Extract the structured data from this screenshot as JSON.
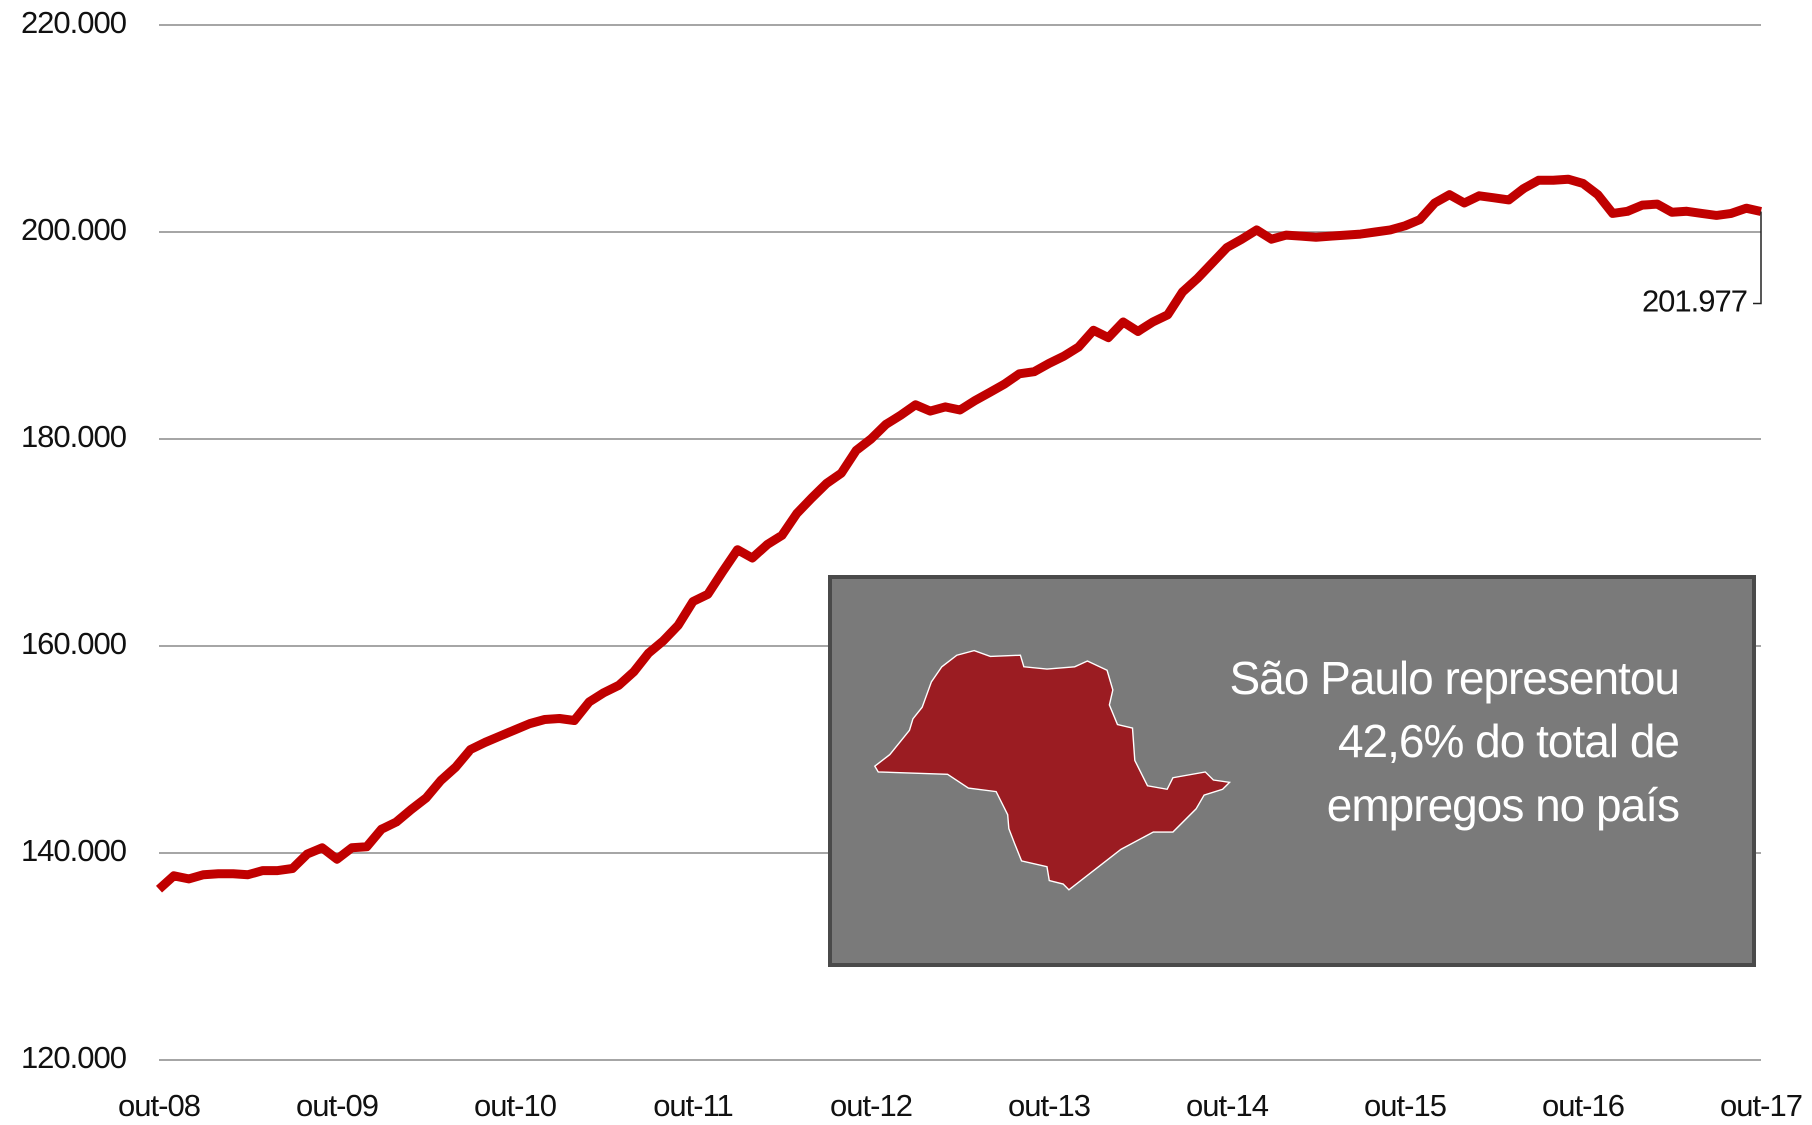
{
  "chart_data": {
    "type": "line",
    "categories": [
      "out-08",
      null,
      null,
      null,
      null,
      null,
      null,
      null,
      null,
      null,
      null,
      null,
      "out-09",
      null,
      null,
      null,
      null,
      null,
      null,
      null,
      null,
      null,
      null,
      null,
      "out-10",
      null,
      null,
      null,
      null,
      null,
      null,
      null,
      null,
      null,
      null,
      null,
      "out-11",
      null,
      null,
      null,
      null,
      null,
      null,
      null,
      null,
      null,
      null,
      null,
      "out-12",
      null,
      null,
      null,
      null,
      null,
      null,
      null,
      null,
      null,
      null,
      null,
      "out-13",
      null,
      null,
      null,
      null,
      null,
      null,
      null,
      null,
      null,
      null,
      null,
      "out-14",
      null,
      null,
      null,
      null,
      null,
      null,
      null,
      null,
      null,
      null,
      null,
      "out-15",
      null,
      null,
      null,
      null,
      null,
      null,
      null,
      null,
      null,
      null,
      null,
      "out-16",
      null,
      null,
      null,
      null,
      null,
      null,
      null,
      null,
      null,
      null,
      null,
      "out-17"
    ],
    "series": [
      {
        "color": "#c00000",
        "values": [
          136500,
          137800,
          137500,
          137900,
          138000,
          138000,
          137900,
          138300,
          138300,
          138500,
          139900,
          140500,
          139400,
          140500,
          140600,
          142300,
          143000,
          144200,
          145300,
          147000,
          148300,
          150000,
          150700,
          151300,
          151900,
          152500,
          152900,
          153000,
          152800,
          154600,
          155500,
          156200,
          157500,
          159300,
          160500,
          162000,
          164300,
          165000,
          167200,
          169300,
          168500,
          169800,
          170700,
          172800,
          174300,
          175700,
          176700,
          178900,
          180000,
          181400,
          182300,
          183300,
          182700,
          183100,
          182800,
          183700,
          184500,
          185300,
          186300,
          186500,
          187300,
          188000,
          188900,
          190500,
          189800,
          191300,
          190400,
          191300,
          192000,
          194200,
          195500,
          197000,
          198500,
          199300,
          200200,
          199300,
          199700,
          199600,
          199500,
          199600,
          199700,
          199800,
          200000,
          200200,
          200600,
          201200,
          202800,
          203600,
          202800,
          203500,
          203300,
          203100,
          204200,
          205000,
          205000,
          205100,
          204700,
          203600,
          201800,
          202000,
          202600,
          202700,
          201900,
          202000,
          201800,
          201600,
          201800,
          202300,
          201977
        ],
        "value_labels": [
          null,
          null,
          null,
          null,
          null,
          null,
          null,
          null,
          null,
          null,
          null,
          null,
          null,
          null,
          null,
          null,
          null,
          null,
          null,
          null,
          null,
          null,
          null,
          null,
          null,
          null,
          null,
          null,
          null,
          null,
          null,
          null,
          null,
          null,
          null,
          null,
          null,
          null,
          null,
          null,
          null,
          null,
          null,
          null,
          null,
          null,
          null,
          null,
          null,
          null,
          null,
          null,
          null,
          null,
          null,
          null,
          null,
          null,
          null,
          null,
          null,
          null,
          null,
          null,
          null,
          null,
          null,
          null,
          null,
          null,
          null,
          null,
          null,
          null,
          null,
          null,
          null,
          null,
          null,
          null,
          null,
          null,
          null,
          null,
          null,
          null,
          null,
          null,
          null,
          null,
          null,
          null,
          null,
          null,
          null,
          null,
          null,
          null,
          null,
          null,
          null,
          null,
          null,
          null,
          null,
          null,
          null,
          null,
          "201.977"
        ]
      }
    ],
    "ylim": [
      120000,
      220000
    ],
    "yticks": [
      {
        "value": 120000,
        "label": "120.000"
      },
      {
        "value": 140000,
        "label": "140.000"
      },
      {
        "value": 160000,
        "label": "160.000"
      },
      {
        "value": 180000,
        "label": "180.000"
      },
      {
        "value": 200000,
        "label": "200.000"
      },
      {
        "value": 220000,
        "label": "220.000"
      }
    ],
    "grid": true,
    "annotation": [
      "São Paulo representou",
      "42,6% do total de",
      "empregos no país"
    ]
  }
}
